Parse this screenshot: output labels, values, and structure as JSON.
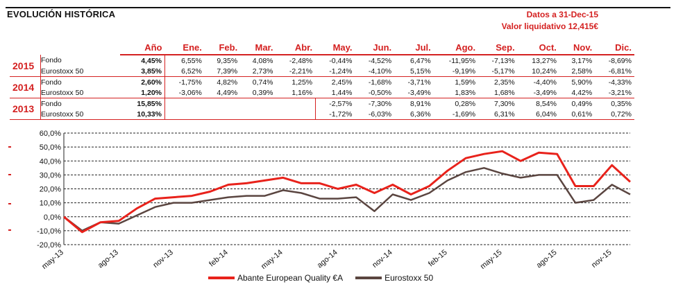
{
  "header": {
    "title": "EVOLUCIÓN HISTÓRICA",
    "date_line": "Datos a 31-Dec-15",
    "nav_line": "Valor liquidativo 12,415€"
  },
  "table": {
    "headers": [
      "Año",
      "Ene.",
      "Feb.",
      "Mar.",
      "Abr.",
      "May.",
      "Jun.",
      "Jul.",
      "Ago.",
      "Sep.",
      "Oct.",
      "Nov.",
      "Dic."
    ],
    "years": [
      {
        "year": "2015",
        "rows": [
          {
            "label": "Fondo",
            "values": [
              "4,45%",
              "6,55%",
              "9,35%",
              "4,08%",
              "-2,48%",
              "-0,44%",
              "-4,52%",
              "6,47%",
              "-11,95%",
              "-7,13%",
              "13,27%",
              "3,17%",
              "-8,69%"
            ]
          },
          {
            "label": "Eurostoxx 50",
            "values": [
              "3,85%",
              "6,52%",
              "7,39%",
              "2,73%",
              "-2,21%",
              "-1,24%",
              "-4,10%",
              "5,15%",
              "-9,19%",
              "-5,17%",
              "10,24%",
              "2,58%",
              "-6,81%"
            ]
          }
        ]
      },
      {
        "year": "2014",
        "rows": [
          {
            "label": "Fondo",
            "values": [
              "2,60%",
              "-1,75%",
              "4,82%",
              "0,74%",
              "1,25%",
              "2,45%",
              "-1,68%",
              "-3,71%",
              "1,59%",
              "2,35%",
              "-4,40%",
              "5,90%",
              "-4,33%"
            ]
          },
          {
            "label": "Eurostoxx 50",
            "values": [
              "1,20%",
              "-3,06%",
              "4,49%",
              "0,39%",
              "1,16%",
              "1,44%",
              "-0,50%",
              "-3,49%",
              "1,83%",
              "1,68%",
              "-3,49%",
              "4,42%",
              "-3,21%"
            ]
          }
        ]
      },
      {
        "year": "2013",
        "rows": [
          {
            "label": "Fondo",
            "values": [
              "15,85%",
              "",
              "",
              "",
              "",
              "-2,57%",
              "-7,30%",
              "8,91%",
              "0,28%",
              "7,30%",
              "8,54%",
              "0,49%",
              "0,35%"
            ]
          },
          {
            "label": "Eurostoxx 50",
            "values": [
              "10,33%",
              "",
              "",
              "",
              "",
              "-1,72%",
              "-6,03%",
              "6,36%",
              "-1,69%",
              "6,31%",
              "6,04%",
              "0,61%",
              "0,72%"
            ]
          }
        ]
      }
    ]
  },
  "chart_data": {
    "type": "line",
    "x": [
      "may-13",
      "jun-13",
      "jul-13",
      "ago-13",
      "sep-13",
      "oct-13",
      "nov-13",
      "dic-13",
      "ene-14",
      "feb-14",
      "mar-14",
      "abr-14",
      "may-14",
      "jun-14",
      "jul-14",
      "ago-14",
      "sep-14",
      "oct-14",
      "nov-14",
      "dic-14",
      "ene-15",
      "feb-15",
      "mar-15",
      "abr-15",
      "may-15",
      "jun-15",
      "jul-15",
      "ago-15",
      "sep-15",
      "oct-15",
      "nov-15",
      "dic-15"
    ],
    "x_ticks": [
      "may-13",
      "ago-13",
      "nov-13",
      "feb-14",
      "may-14",
      "ago-14",
      "nov-14",
      "feb-15",
      "may-15",
      "ago-15",
      "nov-15"
    ],
    "series": [
      {
        "name": "Abante European Quality €A",
        "color": "#e8221b",
        "values": [
          0,
          -11,
          -4,
          -3,
          6,
          13,
          14,
          15,
          18,
          23,
          24,
          26,
          28,
          24,
          24,
          20,
          23,
          17,
          23,
          16,
          22,
          33,
          42,
          45,
          47,
          40,
          46,
          45,
          22,
          22,
          37,
          25
        ]
      },
      {
        "name": "Eurostoxx 50",
        "color": "#5a4540",
        "values": [
          0,
          -10,
          -4,
          -5,
          1,
          7,
          10,
          10,
          12,
          14,
          15,
          15,
          19,
          17,
          13,
          13,
          14,
          4,
          16,
          12,
          17,
          26,
          32,
          35,
          31,
          28,
          30,
          30,
          10,
          12,
          23,
          16
        ]
      }
    ],
    "ylim": [
      -20,
      60
    ],
    "yticks": [
      "-20,0%",
      "-10,0%",
      "0,0%",
      "10,0%",
      "20,0%",
      "30,0%",
      "40,0%",
      "50,0%",
      "60,0%"
    ],
    "grid": true,
    "legend": "bottom"
  }
}
